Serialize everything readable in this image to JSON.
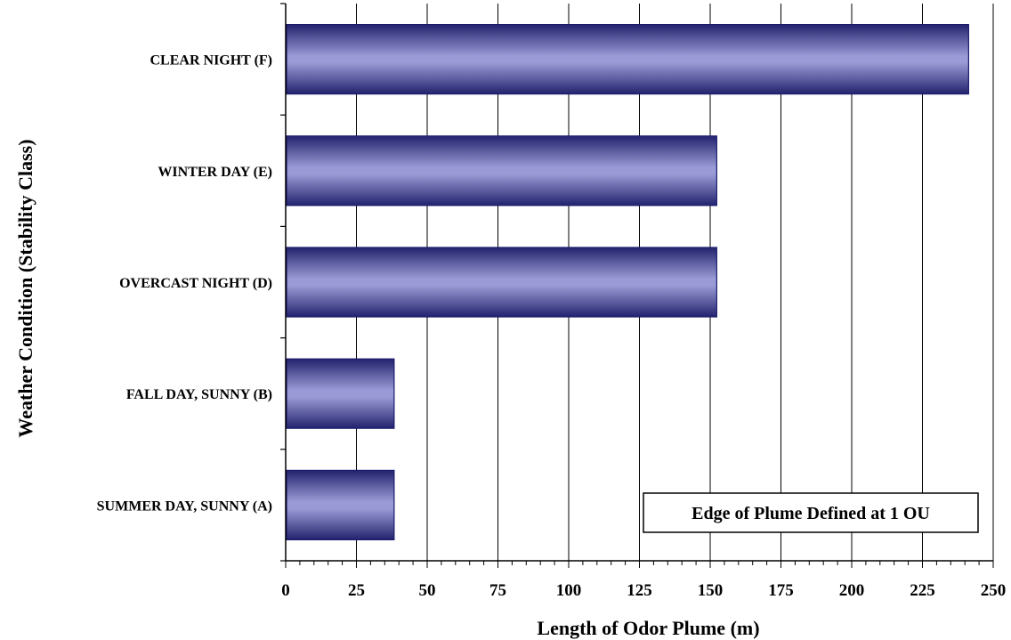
{
  "chart_data": {
    "type": "bar",
    "orientation": "horizontal",
    "categories": [
      "CLEAR NIGHT (F)",
      "WINTER DAY (E)",
      "OVERCAST NIGHT (D)",
      "FALL DAY, SUNNY (B)",
      "SUMMER DAY, SUNNY (A)"
    ],
    "values": [
      241,
      152,
      152,
      38,
      38
    ],
    "xlabel": "Length of Odor Plume (m)",
    "ylabel": "Weather Condition (Stability Class)",
    "xlim": [
      0,
      250
    ],
    "x_ticks": [
      0,
      25,
      50,
      75,
      100,
      125,
      150,
      175,
      200,
      225,
      250
    ],
    "x_minor_step": 5,
    "grid": "vertical major gridlines",
    "annotation": "Edge of Plume Defined at 1 OU",
    "annotation_position": "bottom-right",
    "colors": {
      "bar_edge": "#1c1c6e",
      "bar_center": "#9a9ad6",
      "bar_dark": "#23236e",
      "axis": "#000000",
      "grid": "#000000"
    }
  }
}
